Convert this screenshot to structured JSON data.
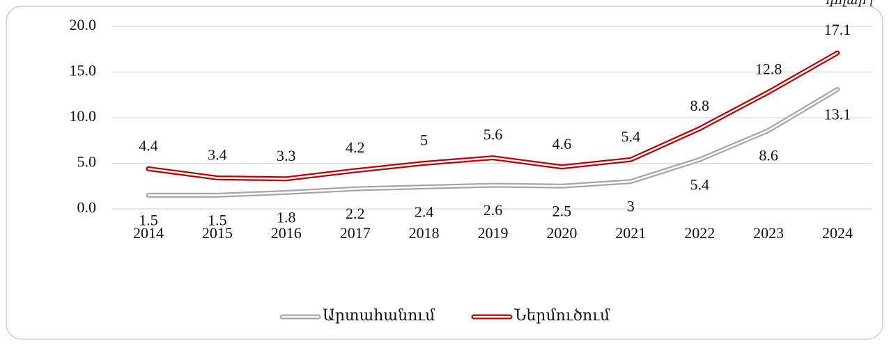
{
  "chart_data": {
    "type": "line",
    "note": "դոլար [",
    "categories": [
      "2014",
      "2015",
      "2016",
      "2017",
      "2018",
      "2019",
      "2020",
      "2021",
      "2022",
      "2023",
      "2024"
    ],
    "series": [
      {
        "name": "Արտահանում",
        "color": "#a6a6a6",
        "values": [
          1.5,
          1.5,
          1.8,
          2.2,
          2.4,
          2.6,
          2.5,
          3.0,
          5.4,
          8.6,
          13.1
        ],
        "label_side": "below"
      },
      {
        "name": "Ներմուծում",
        "color": "#c00000",
        "values": [
          4.4,
          3.4,
          3.3,
          4.2,
          5.0,
          5.6,
          4.6,
          5.4,
          8.8,
          12.8,
          17.1
        ],
        "label_side": "above"
      }
    ],
    "ylim": [
      0,
      20
    ],
    "yticks": [
      {
        "value": 0,
        "label": "0.0"
      },
      {
        "value": 5,
        "label": "5.0"
      },
      {
        "value": 10,
        "label": "10.0"
      },
      {
        "value": 15,
        "label": "15.0"
      },
      {
        "value": 20,
        "label": "20.0"
      }
    ],
    "grid": true,
    "legend": "bottom"
  }
}
